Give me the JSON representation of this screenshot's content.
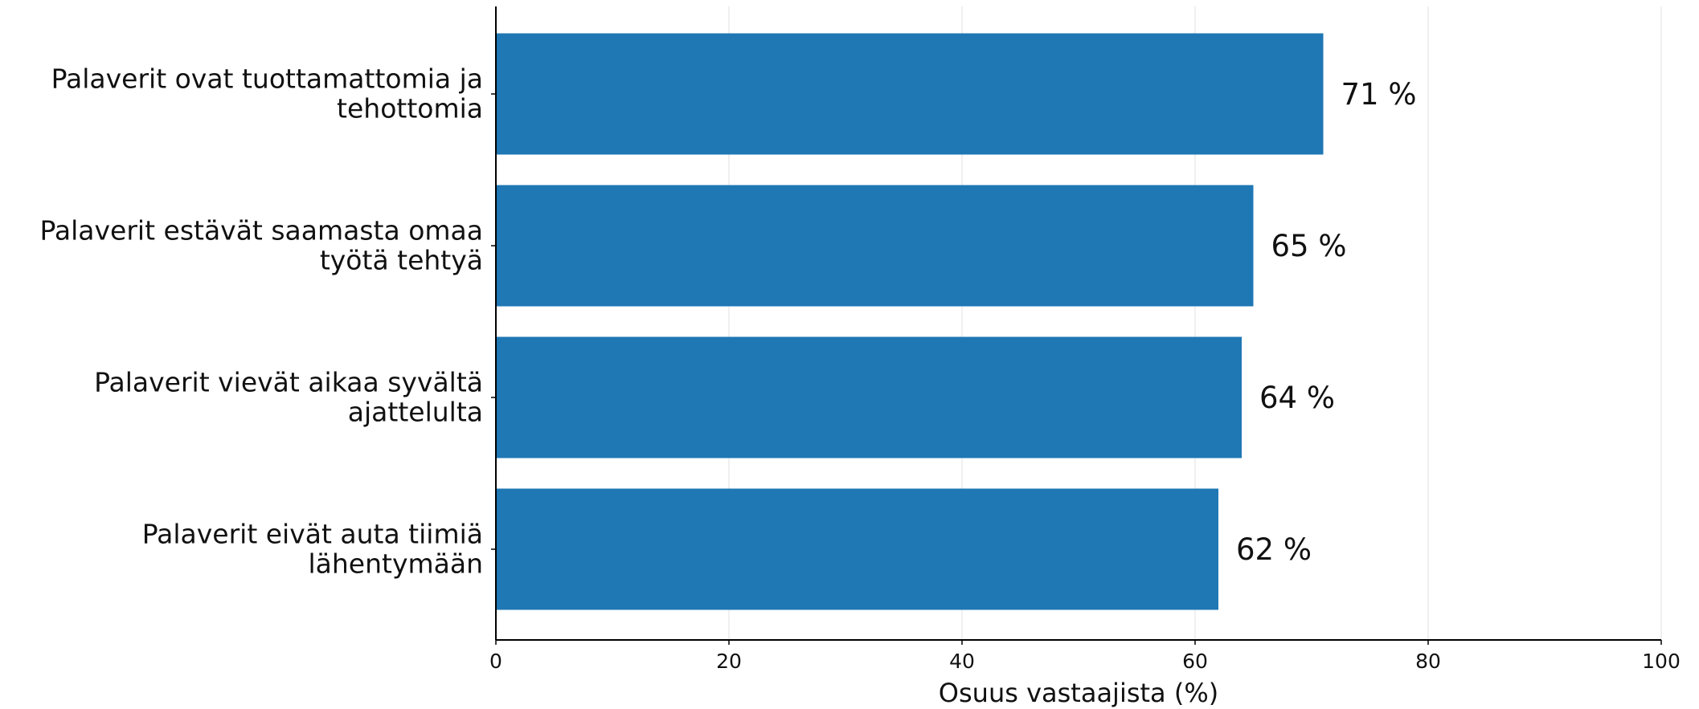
{
  "chart_data": {
    "type": "bar",
    "orientation": "horizontal",
    "categories": [
      [
        "Palaverit ovat tuottamattomia ja",
        "tehottomia"
      ],
      [
        "Palaverit estävät saamasta omaa",
        "työtä tehtyä"
      ],
      [
        "Palaverit vievät aikaa syvältä",
        "ajattelulta"
      ],
      [
        "Palaverit eivät auta tiimiä",
        "lähentymään"
      ]
    ],
    "values": [
      71,
      65,
      64,
      62
    ],
    "value_labels": [
      "71 %",
      "65 %",
      "64 %",
      "62 %"
    ],
    "title": "",
    "xlabel": "Osuus vastaajista (%)",
    "ylabel": "",
    "xlim": [
      0,
      100
    ],
    "xticks": [
      0,
      20,
      40,
      60,
      80,
      100
    ],
    "xtick_labels": [
      "0",
      "20",
      "40",
      "60",
      "80",
      "100"
    ],
    "grid": "vertical",
    "legend": "none",
    "colors": {
      "bar": "#1f77b4",
      "grid": "#ebebeb",
      "axis": "#000000",
      "text": "#111111"
    }
  }
}
